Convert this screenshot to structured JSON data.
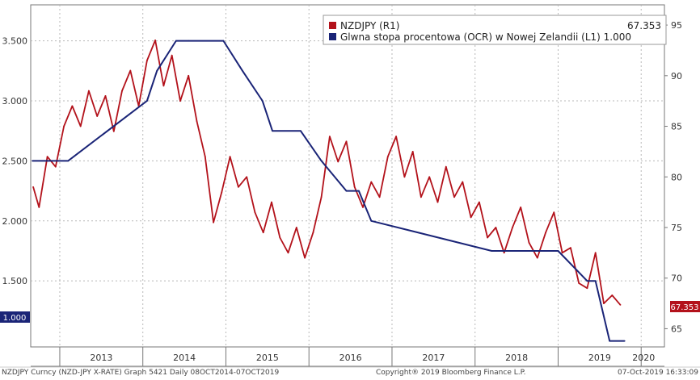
{
  "chart_data": {
    "type": "line",
    "title": "",
    "grid": true,
    "legend_position": "top-right",
    "x_ticks": [
      "2013",
      "2014",
      "2015",
      "2016",
      "2017",
      "2018",
      "2019",
      "2020"
    ],
    "left_axis": {
      "ticks": [
        "1.500",
        "2.000",
        "2.500",
        "3.000",
        "3.500"
      ],
      "ylim": [
        0.95,
        3.8
      ],
      "last_value_label": "1.000"
    },
    "right_axis": {
      "ticks": [
        "65",
        "70",
        "75",
        "80",
        "85",
        "90",
        "95"
      ],
      "ylim": [
        63.2,
        97.0
      ],
      "last_value_label": "67.353"
    },
    "legend": [
      {
        "label": "NZDJPY  (R1)",
        "value": "67.353",
        "color": "#b3121b"
      },
      {
        "label": "Glwna stopa procentowa (OCR) w Nowej Zelandii  (L1) 1.000",
        "value": "",
        "color": "#1a2477"
      }
    ],
    "series": [
      {
        "name": "NZDJPY  (R1)",
        "axis": "right",
        "color": "#b3121b",
        "x": [
          2012.68,
          2012.75,
          2012.85,
          2012.95,
          2013.05,
          2013.15,
          2013.25,
          2013.35,
          2013.45,
          2013.55,
          2013.65,
          2013.75,
          2013.85,
          2013.95,
          2014.05,
          2014.15,
          2014.25,
          2014.35,
          2014.45,
          2014.55,
          2014.65,
          2014.75,
          2014.85,
          2014.95,
          2015.05,
          2015.15,
          2015.25,
          2015.35,
          2015.45,
          2015.55,
          2015.65,
          2015.75,
          2015.85,
          2015.95,
          2016.05,
          2016.15,
          2016.25,
          2016.35,
          2016.45,
          2016.55,
          2016.65,
          2016.75,
          2016.85,
          2016.95,
          2017.05,
          2017.15,
          2017.25,
          2017.35,
          2017.45,
          2017.55,
          2017.65,
          2017.75,
          2017.85,
          2017.95,
          2018.05,
          2018.15,
          2018.25,
          2018.35,
          2018.45,
          2018.55,
          2018.65,
          2018.75,
          2018.85,
          2018.95,
          2019.05,
          2019.15,
          2019.25,
          2019.35,
          2019.45,
          2019.55,
          2019.65,
          2019.75
        ],
        "values": [
          79.0,
          77.0,
          82.0,
          81.0,
          85.0,
          87.0,
          85.0,
          88.5,
          86.0,
          88.0,
          84.5,
          88.5,
          90.5,
          87.0,
          91.5,
          93.5,
          89.0,
          92.0,
          87.5,
          90.0,
          85.5,
          82.0,
          75.5,
          78.5,
          82.0,
          79.0,
          80.0,
          76.5,
          74.5,
          77.5,
          74.0,
          72.5,
          75.0,
          72.0,
          74.5,
          78.0,
          84.0,
          81.5,
          83.5,
          79.0,
          77.0,
          79.5,
          78.0,
          82.0,
          84.0,
          80.0,
          82.5,
          78.0,
          80.0,
          77.5,
          81.0,
          78.0,
          79.5,
          76.0,
          77.5,
          74.0,
          75.0,
          72.5,
          75.0,
          77.0,
          73.5,
          72.0,
          74.5,
          76.5,
          72.5,
          73.0,
          69.5,
          69.0,
          72.5,
          67.5,
          68.3,
          67.353
        ]
      },
      {
        "name": "Glwna stopa procentowa (OCR) w Nowej Zelandii  (L1) 1.000",
        "axis": "left",
        "color": "#1a2477",
        "x": [
          2012.67,
          2013.1,
          2014.05,
          2014.17,
          2014.4,
          2014.55,
          2014.97,
          2015.2,
          2015.44,
          2015.56,
          2015.9,
          2016.15,
          2016.45,
          2016.6,
          2016.75,
          2018.2,
          2018.95,
          2019.0,
          2019.35,
          2019.45,
          2019.62,
          2019.8
        ],
        "values": [
          2.5,
          2.5,
          3.0,
          3.25,
          3.5,
          3.5,
          3.5,
          3.25,
          3.0,
          2.75,
          2.75,
          2.5,
          2.25,
          2.25,
          2.0,
          1.75,
          1.75,
          1.75,
          1.5,
          1.5,
          1.0,
          1.0
        ]
      }
    ],
    "footer": {
      "left": "NZDJPY Curncy (NZD-JPY X-RATE) Graph 5421  Daily 08OCT2014-07OCT2019",
      "center": "Copyright® 2019 Bloomberg Finance L.P.",
      "right": "07-Oct-2019 16:33:09"
    }
  }
}
